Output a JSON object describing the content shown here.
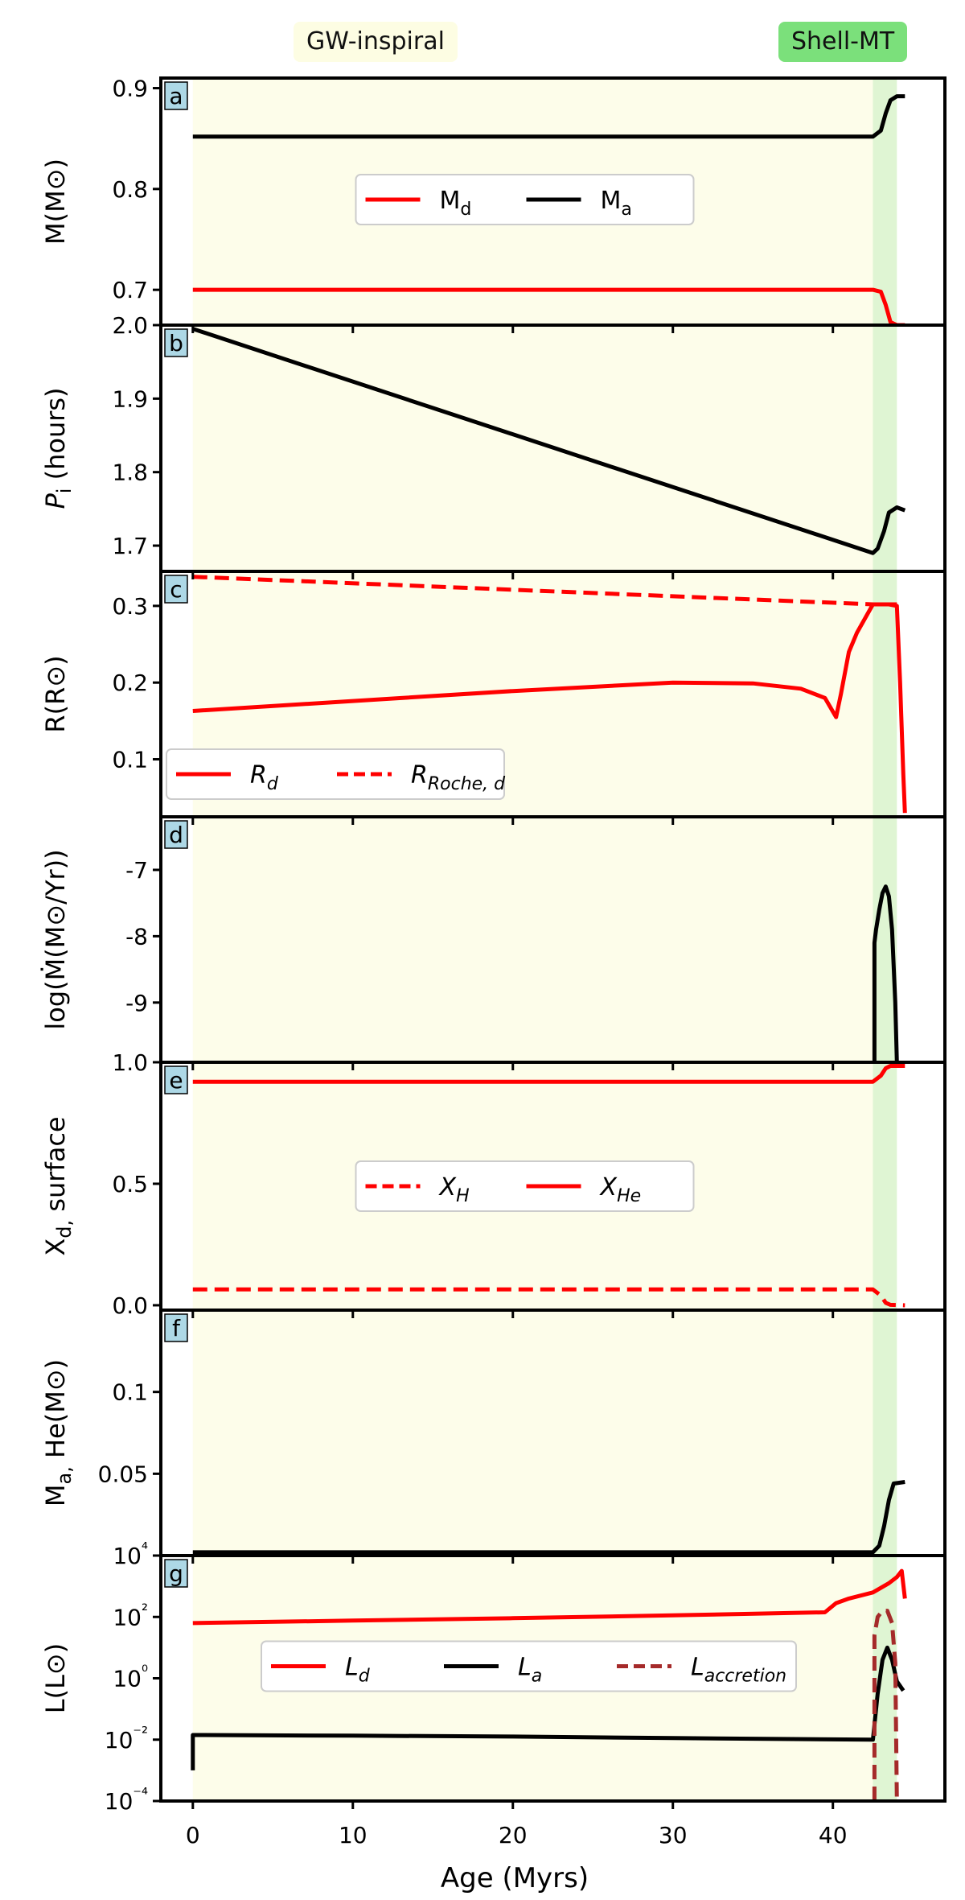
{
  "phases": {
    "gw_inspiral": "GW-inspiral",
    "shell_mt": "Shell-MT"
  },
  "colors": {
    "gw_band": "#fdfdea",
    "shell_band": "#dff5d3",
    "red": "#ff0000",
    "black": "#000000",
    "brown": "#a52a2a",
    "panel_tag_bg": "#add8e6"
  },
  "x_axis": {
    "label": "Age (Myrs)",
    "xlim": [
      -2,
      47
    ],
    "ticks": [
      0,
      10,
      20,
      30,
      40
    ],
    "tick_labels": [
      "0",
      "10",
      "20",
      "30",
      "40"
    ],
    "gw_span": [
      0,
      42.5
    ],
    "shell_span": [
      42.5,
      44.0
    ]
  },
  "chart_data": [
    {
      "panel": "a",
      "type": "line",
      "ylabel": "M(M⊙)",
      "ylim": [
        0.665,
        0.91
      ],
      "yticks": [
        0.7,
        0.8,
        0.9
      ],
      "ytick_labels": [
        "0.7",
        "0.8",
        "0.9"
      ],
      "legend": {
        "placement": "center",
        "ncol": 2
      },
      "series": [
        {
          "name": "Md",
          "label": "M",
          "sub": "d",
          "italic": false,
          "color": "#ff0000",
          "dash": "solid",
          "x": [
            0,
            42.5,
            43.0,
            43.3,
            43.6,
            44.0,
            44.5
          ],
          "y": [
            0.7,
            0.7,
            0.698,
            0.685,
            0.668,
            0.665,
            0.665
          ]
        },
        {
          "name": "Ma",
          "label": "M",
          "sub": "a",
          "italic": false,
          "color": "#000000",
          "dash": "solid",
          "x": [
            0,
            42.5,
            43.0,
            43.3,
            43.6,
            44.0,
            44.5
          ],
          "y": [
            0.852,
            0.852,
            0.858,
            0.875,
            0.888,
            0.892,
            0.892
          ]
        }
      ]
    },
    {
      "panel": "b",
      "type": "line",
      "ylabel": "P_i (hours)",
      "ylim": [
        1.665,
        2.0
      ],
      "yticks": [
        1.7,
        1.8,
        1.9,
        2.0
      ],
      "ytick_labels": [
        "1.7",
        "1.8",
        "1.9",
        "2.0"
      ],
      "legend": null,
      "series": [
        {
          "name": "P",
          "color": "#000000",
          "dash": "solid",
          "x": [
            0,
            42.5,
            42.8,
            43.2,
            43.5,
            44.0,
            44.5
          ],
          "y": [
            1.995,
            1.69,
            1.696,
            1.72,
            1.745,
            1.752,
            1.748
          ]
        }
      ]
    },
    {
      "panel": "c",
      "type": "line",
      "ylabel": "R(R⊙)",
      "ylim": [
        0.025,
        0.345
      ],
      "yticks": [
        0.1,
        0.2,
        0.3
      ],
      "ytick_labels": [
        "0.1",
        "0.2",
        "0.3"
      ],
      "legend": {
        "placement": "lower-left",
        "ncol": 2
      },
      "series": [
        {
          "name": "Rd",
          "label": "R",
          "sub": "d",
          "italic": true,
          "color": "#ff0000",
          "dash": "solid",
          "x": [
            0,
            10,
            20,
            30,
            35,
            38,
            39.5,
            40.2,
            40.5,
            41.0,
            41.5,
            42.5,
            43.5,
            44.0,
            44.2,
            44.4,
            44.5
          ],
          "y": [
            0.163,
            0.176,
            0.189,
            0.2,
            0.199,
            0.192,
            0.18,
            0.155,
            0.185,
            0.24,
            0.265,
            0.302,
            0.302,
            0.3,
            0.2,
            0.08,
            0.03
          ]
        },
        {
          "name": "RRoche",
          "label": "R",
          "sub": "Roche, d",
          "italic": true,
          "color": "#ff0000",
          "dash": "dashed",
          "x": [
            0,
            42.5,
            44.0
          ],
          "y": [
            0.338,
            0.302,
            0.302
          ]
        }
      ]
    },
    {
      "panel": "d",
      "type": "line",
      "ylabel": "log(Ṁ(M⊙/Yr))",
      "ylim": [
        -9.9,
        -6.2
      ],
      "yticks": [
        -9,
        -8,
        -7
      ],
      "ytick_labels": [
        "-9",
        "-8",
        "-7"
      ],
      "legend": null,
      "series": [
        {
          "name": "Mdot",
          "color": "#000000",
          "dash": "solid",
          "x": [
            42.6,
            42.6,
            42.7,
            42.9,
            43.1,
            43.3,
            43.5,
            43.7,
            43.9,
            44.0
          ],
          "y": [
            -9.9,
            -8.1,
            -7.9,
            -7.6,
            -7.35,
            -7.25,
            -7.4,
            -7.9,
            -9.0,
            -9.9
          ]
        }
      ]
    },
    {
      "panel": "e",
      "type": "line",
      "ylabel": "X_d, surface",
      "ylim": [
        -0.02,
        1.0
      ],
      "yticks": [
        0.0,
        0.5,
        1.0
      ],
      "ytick_labels": [
        "0.0",
        "0.5",
        "1.0"
      ],
      "legend": {
        "placement": "center",
        "ncol": 2
      },
      "series": [
        {
          "name": "XH",
          "label": "X",
          "sub": "H",
          "italic": true,
          "color": "#ff0000",
          "dash": "dashed",
          "x": [
            0,
            42.5,
            43.0,
            43.3,
            43.6,
            44.5
          ],
          "y": [
            0.065,
            0.065,
            0.04,
            0.01,
            0.002,
            0.0
          ]
        },
        {
          "name": "XHe",
          "label": "X",
          "sub": "He",
          "italic": true,
          "color": "#ff0000",
          "dash": "solid",
          "x": [
            0,
            42.5,
            43.0,
            43.3,
            43.6,
            44.5
          ],
          "y": [
            0.92,
            0.92,
            0.945,
            0.975,
            0.985,
            0.985
          ]
        }
      ]
    },
    {
      "panel": "f",
      "type": "line",
      "ylabel": "M_a, He(M⊙)",
      "ylim": [
        0.0,
        0.15
      ],
      "yticks": [
        0.05,
        0.1
      ],
      "ytick_labels": [
        "0.05",
        "0.1"
      ],
      "legend": null,
      "series": [
        {
          "name": "MaHe",
          "color": "#000000",
          "dash": "solid",
          "x": [
            0,
            42.5,
            42.9,
            43.2,
            43.5,
            43.8,
            44.5
          ],
          "y": [
            0.002,
            0.002,
            0.006,
            0.018,
            0.034,
            0.044,
            0.045
          ]
        }
      ]
    },
    {
      "panel": "g",
      "type": "line",
      "ylabel": "L(L⊙)",
      "yscale": "log",
      "ylim_log10": [
        -4,
        4
      ],
      "yticks_log10": [
        -4,
        -2,
        0,
        2,
        4
      ],
      "ytick_labels": [
        "10⁻⁴",
        "10⁻²",
        "10⁰",
        "10²",
        "10⁴"
      ],
      "legend": {
        "placement": "center",
        "ncol": 3
      },
      "series": [
        {
          "name": "Ld",
          "label": "L",
          "sub": "d",
          "italic": true,
          "color": "#ff0000",
          "dash": "solid",
          "x": [
            0,
            10,
            20,
            30,
            39.5,
            40.2,
            41.0,
            42.5,
            43.5,
            44.0,
            44.3,
            44.5
          ],
          "y_log10": [
            1.8,
            1.88,
            1.96,
            2.05,
            2.15,
            2.45,
            2.6,
            2.8,
            3.1,
            3.3,
            3.5,
            2.6
          ]
        },
        {
          "name": "La",
          "label": "L",
          "sub": "a",
          "italic": true,
          "color": "#000000",
          "dash": "solid",
          "x": [
            0,
            0,
            10,
            20,
            30,
            42.5,
            42.8,
            43.1,
            43.4,
            43.7,
            44.0,
            44.4
          ],
          "y_log10": [
            -3.0,
            -1.85,
            -1.87,
            -1.9,
            -1.95,
            -2.0,
            -0.5,
            0.6,
            1.0,
            0.6,
            -0.1,
            -0.4
          ]
        },
        {
          "name": "Lacc",
          "label": "L",
          "sub": "accretion",
          "italic": true,
          "color": "#a52a2a",
          "dash": "dashed",
          "x": [
            42.6,
            42.6,
            42.8,
            43.1,
            43.4,
            43.7,
            43.9,
            44.0
          ],
          "y_log10": [
            -4.0,
            1.4,
            2.0,
            2.2,
            2.2,
            1.8,
            0.5,
            -4.0
          ]
        }
      ]
    }
  ]
}
